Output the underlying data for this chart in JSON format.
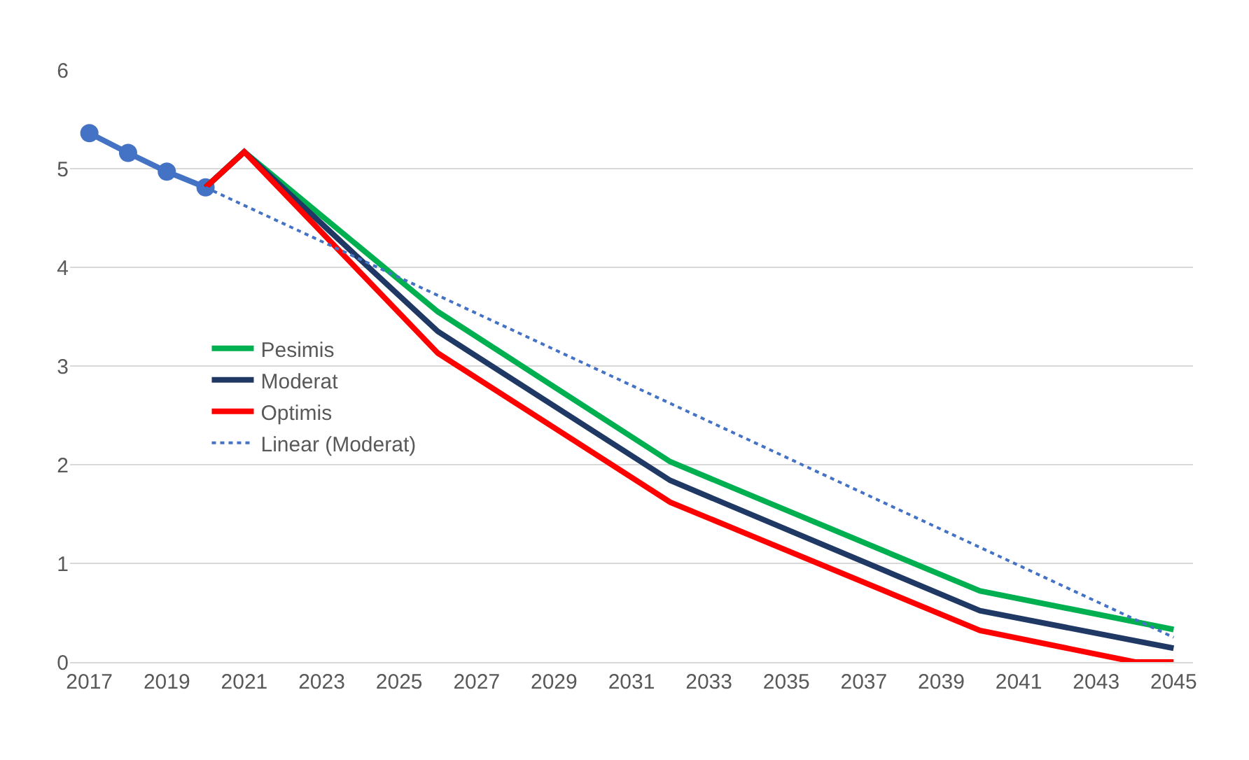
{
  "chart_data": {
    "type": "line",
    "xlim": [
      2016.5,
      2045.5
    ],
    "xticks": [
      2017,
      2019,
      2021,
      2023,
      2025,
      2027,
      2029,
      2031,
      2033,
      2035,
      2037,
      2039,
      2041,
      2043,
      2045
    ],
    "ylim": [
      0,
      6
    ],
    "yticks": [
      0,
      1,
      2,
      3,
      4,
      5,
      6
    ],
    "grid": "y",
    "legend": "left",
    "series": [
      {
        "color": "#4472c4",
        "marker": "circle",
        "x": [
          2017,
          2018,
          2019,
          2020
        ],
        "values": [
          5.36,
          5.16,
          4.97,
          4.81
        ]
      },
      {
        "name": "Pesimis",
        "color": "#00b050",
        "x": [
          2020,
          2021,
          2026,
          2032,
          2040,
          2045
        ],
        "values": [
          4.81,
          5.17,
          3.55,
          2.03,
          0.72,
          0.33
        ]
      },
      {
        "name": "Moderat",
        "color": "#203864",
        "x": [
          2020,
          2021,
          2026,
          2032,
          2040,
          2045
        ],
        "values": [
          4.81,
          5.17,
          3.35,
          1.84,
          0.52,
          0.14
        ]
      },
      {
        "name": "Optimis",
        "color": "#ff0000",
        "x": [
          2020,
          2021,
          2026,
          2032,
          2040,
          2044,
          2045
        ],
        "values": [
          4.81,
          5.17,
          3.13,
          1.62,
          0.32,
          0,
          0
        ]
      },
      {
        "name": "Linear (Moderat)",
        "color": "#4472c4",
        "line_style": "dotted",
        "x": [
          2020,
          2045
        ],
        "values": [
          4.81,
          0.25
        ]
      }
    ]
  }
}
